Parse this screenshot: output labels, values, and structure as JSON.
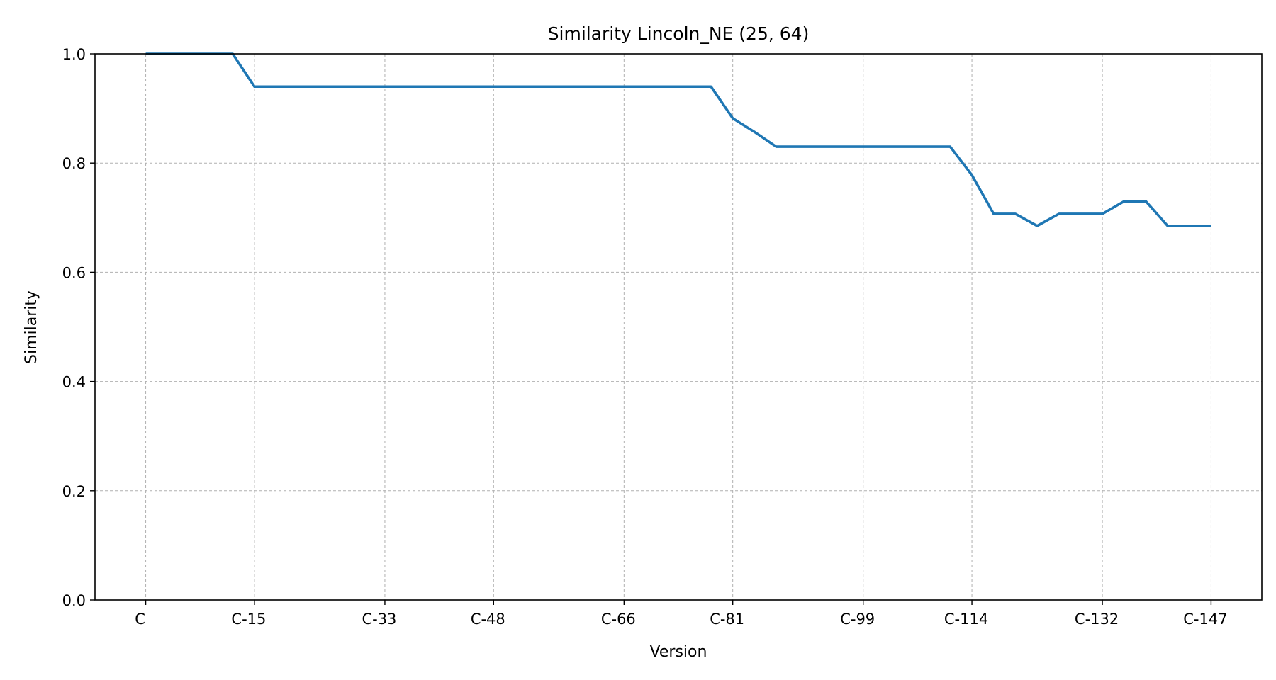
{
  "chart_data": {
    "type": "line",
    "title": "Similarity Lincoln_NE (25, 64)",
    "xlabel": "Version",
    "ylabel": "Similarity",
    "ylim": [
      0.0,
      1.0
    ],
    "yticks": [
      "0.0",
      "0.2",
      "0.4",
      "0.6",
      "0.8",
      "1.0"
    ],
    "x_tick_labels": [
      "C",
      "C-15",
      "C-33",
      "C-48",
      "C-66",
      "C-81",
      "C-99",
      "C-114",
      "C-132",
      "C-147"
    ],
    "x_tick_indices": [
      0,
      15,
      33,
      48,
      66,
      81,
      99,
      114,
      132,
      147
    ],
    "x_range": [
      -7,
      154
    ],
    "grid": true,
    "line_color": "#1f77b4",
    "series": [
      {
        "x": [
          0,
          12,
          15,
          78,
          81,
          84,
          87,
          111,
          114,
          117,
          120,
          123,
          126,
          132,
          135,
          138,
          141,
          144,
          147
        ],
        "values": [
          1.0,
          1.0,
          0.94,
          0.94,
          0.882,
          0.857,
          0.83,
          0.83,
          0.778,
          0.707,
          0.707,
          0.685,
          0.707,
          0.707,
          0.73,
          0.73,
          0.685,
          0.685,
          0.685
        ]
      }
    ]
  }
}
